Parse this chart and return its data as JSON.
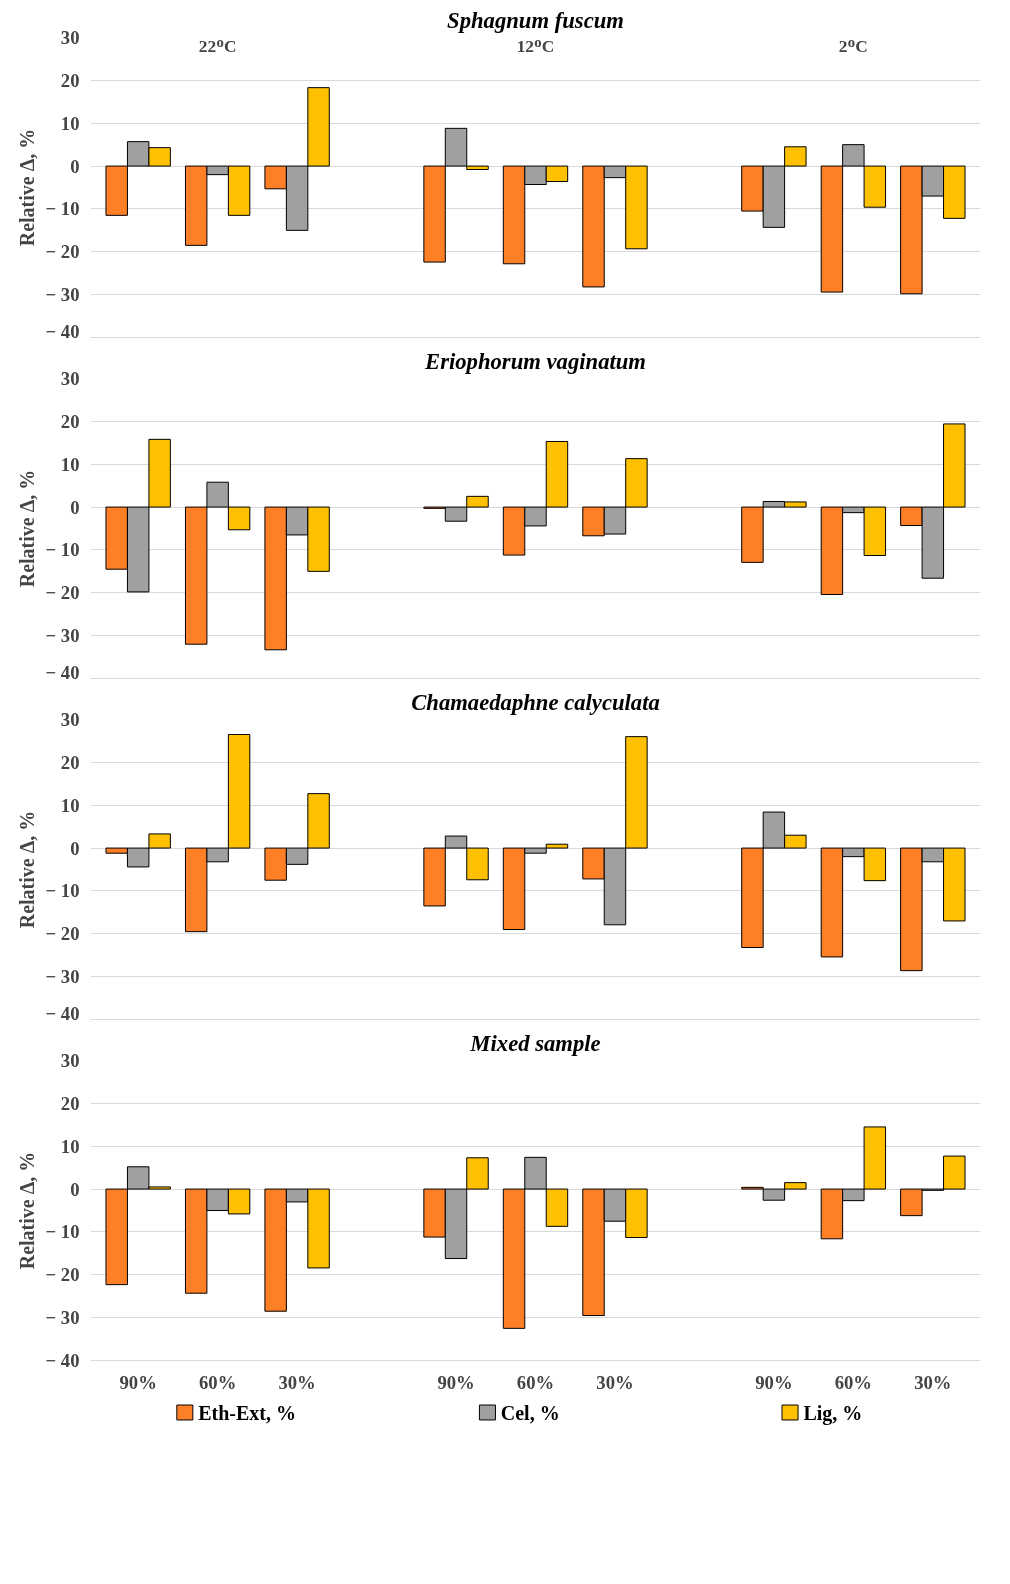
{
  "chart_data": [
    {
      "type": "bar",
      "title": "Sphagnum fuscum",
      "ylabel": "Relative Δ, %",
      "categories": [
        null,
        null,
        null,
        null,
        null,
        null,
        null,
        null,
        null,
        null,
        null
      ],
      "series": [
        {
          "color": "#ff7f27",
          "values": [
            -11.5,
            -18.5,
            -5.3,
            null,
            -22.4,
            -22.8,
            -28.2,
            null,
            -10.5,
            -29.4,
            -29.8
          ]
        },
        {
          "color": "#a0a0a0",
          "values": [
            5.7,
            -2,
            -15,
            null,
            8.8,
            -4.3,
            -2.7,
            null,
            -14.3,
            5,
            -7
          ]
        },
        {
          "color": "#ffc000",
          "values": [
            4.3,
            -11.5,
            18.3,
            null,
            -0.8,
            -3.6,
            -19.3,
            null,
            4.5,
            -9.6,
            -12.2
          ]
        }
      ],
      "annotations": [
        "22ᴼC",
        "12ᴼC",
        "2ᴼC"
      ],
      "ylim": [
        -40,
        30
      ],
      "yticks": [
        {
          "value": -40,
          "label": "− 40"
        },
        {
          "value": -30,
          "label": "− 30"
        },
        {
          "value": -20,
          "label": "− 20"
        },
        {
          "value": -10,
          "label": "− 10"
        },
        0,
        10,
        20,
        30
      ],
      "grid": "y",
      "tick_labels": "y"
    },
    {
      "type": "bar",
      "title": "Eriophorum vaginatum",
      "ylabel": "Relative Δ, %",
      "categories": [
        null,
        null,
        null,
        null,
        null,
        null,
        null,
        null,
        null,
        null,
        null
      ],
      "series": [
        {
          "color": "#ff7f27",
          "values": [
            -14.5,
            -32,
            -33.3,
            null,
            -0.3,
            -11.2,
            -6.7,
            null,
            -12.9,
            -20.4,
            -4.3
          ]
        },
        {
          "color": "#a0a0a0",
          "values": [
            -19.8,
            5.8,
            -6.5,
            null,
            -3.3,
            -4.4,
            -6.3,
            null,
            1.3,
            -1.3,
            -16.6
          ]
        },
        {
          "color": "#ffc000",
          "values": [
            15.8,
            -5.3,
            -15,
            null,
            2.5,
            15.3,
            11.3,
            null,
            1.2,
            -11.3,
            19.4
          ]
        }
      ],
      "ylim": [
        -40,
        30
      ],
      "yticks": [
        {
          "value": -40,
          "label": "− 40"
        },
        {
          "value": -30,
          "label": "− 30"
        },
        {
          "value": -20,
          "label": "− 20"
        },
        {
          "value": -10,
          "label": "− 10"
        },
        0,
        10,
        20,
        30
      ],
      "grid": "y",
      "tick_labels": "y"
    },
    {
      "type": "bar",
      "title": "Chamaedaphne calyculata",
      "ylabel": "Relative Δ, %",
      "categories": [
        null,
        null,
        null,
        null,
        null,
        null,
        null,
        null,
        null,
        null,
        null
      ],
      "series": [
        {
          "color": "#ff7f27",
          "values": [
            -1.2,
            -19.5,
            -7.5,
            null,
            -13.5,
            -19,
            -7.2,
            null,
            -23.2,
            -25.4,
            -28.6
          ]
        },
        {
          "color": "#a0a0a0",
          "values": [
            -4.4,
            -3.2,
            -3.8,
            null,
            2.8,
            -1.2,
            -17.9,
            null,
            8.4,
            -2,
            -3.2
          ]
        },
        {
          "color": "#ffc000",
          "values": [
            3.3,
            26.5,
            12.7,
            null,
            -7.4,
            0.9,
            26,
            null,
            3,
            -7.6,
            -17
          ]
        }
      ],
      "ylim": [
        -40,
        30
      ],
      "yticks": [
        {
          "value": -40,
          "label": "− 40"
        },
        {
          "value": -30,
          "label": "− 30"
        },
        {
          "value": -20,
          "label": "− 20"
        },
        {
          "value": -10,
          "label": "− 10"
        },
        0,
        10,
        20,
        30
      ],
      "grid": "y",
      "tick_labels": "y"
    },
    {
      "type": "bar",
      "title": "Mixed sample",
      "ylabel": "Relative Δ, %",
      "categories": [
        "90%",
        "60%",
        "30%",
        null,
        "90%",
        "60%",
        "30%",
        null,
        "90%",
        "60%",
        "30%"
      ],
      "series": [
        {
          "name": "Eth-Ext, %",
          "color": "#ff7f27",
          "values": [
            -22.3,
            -24.3,
            -28.5,
            null,
            -11.2,
            -32.5,
            -29.5,
            null,
            0.4,
            -11.6,
            -6.2
          ]
        },
        {
          "name": "Cel, %",
          "color": "#a0a0a0",
          "values": [
            5.2,
            -5,
            -3,
            null,
            -16.2,
            7.4,
            -7.5,
            null,
            -2.6,
            -2.7,
            -0.3
          ]
        },
        {
          "name": "Lig, %",
          "color": "#ffc000",
          "values": [
            0.5,
            -5.8,
            -18.4,
            null,
            7.3,
            -8.7,
            -11.3,
            null,
            1.5,
            14.5,
            7.7
          ]
        }
      ],
      "ylim": [
        -40,
        30
      ],
      "yticks": [
        {
          "value": -40,
          "label": "− 40"
        },
        {
          "value": -30,
          "label": "− 30"
        },
        {
          "value": -20,
          "label": "− 20"
        },
        {
          "value": -10,
          "label": "− 10"
        },
        0,
        10,
        20,
        30
      ],
      "grid": "y",
      "legend": "bottom"
    }
  ]
}
